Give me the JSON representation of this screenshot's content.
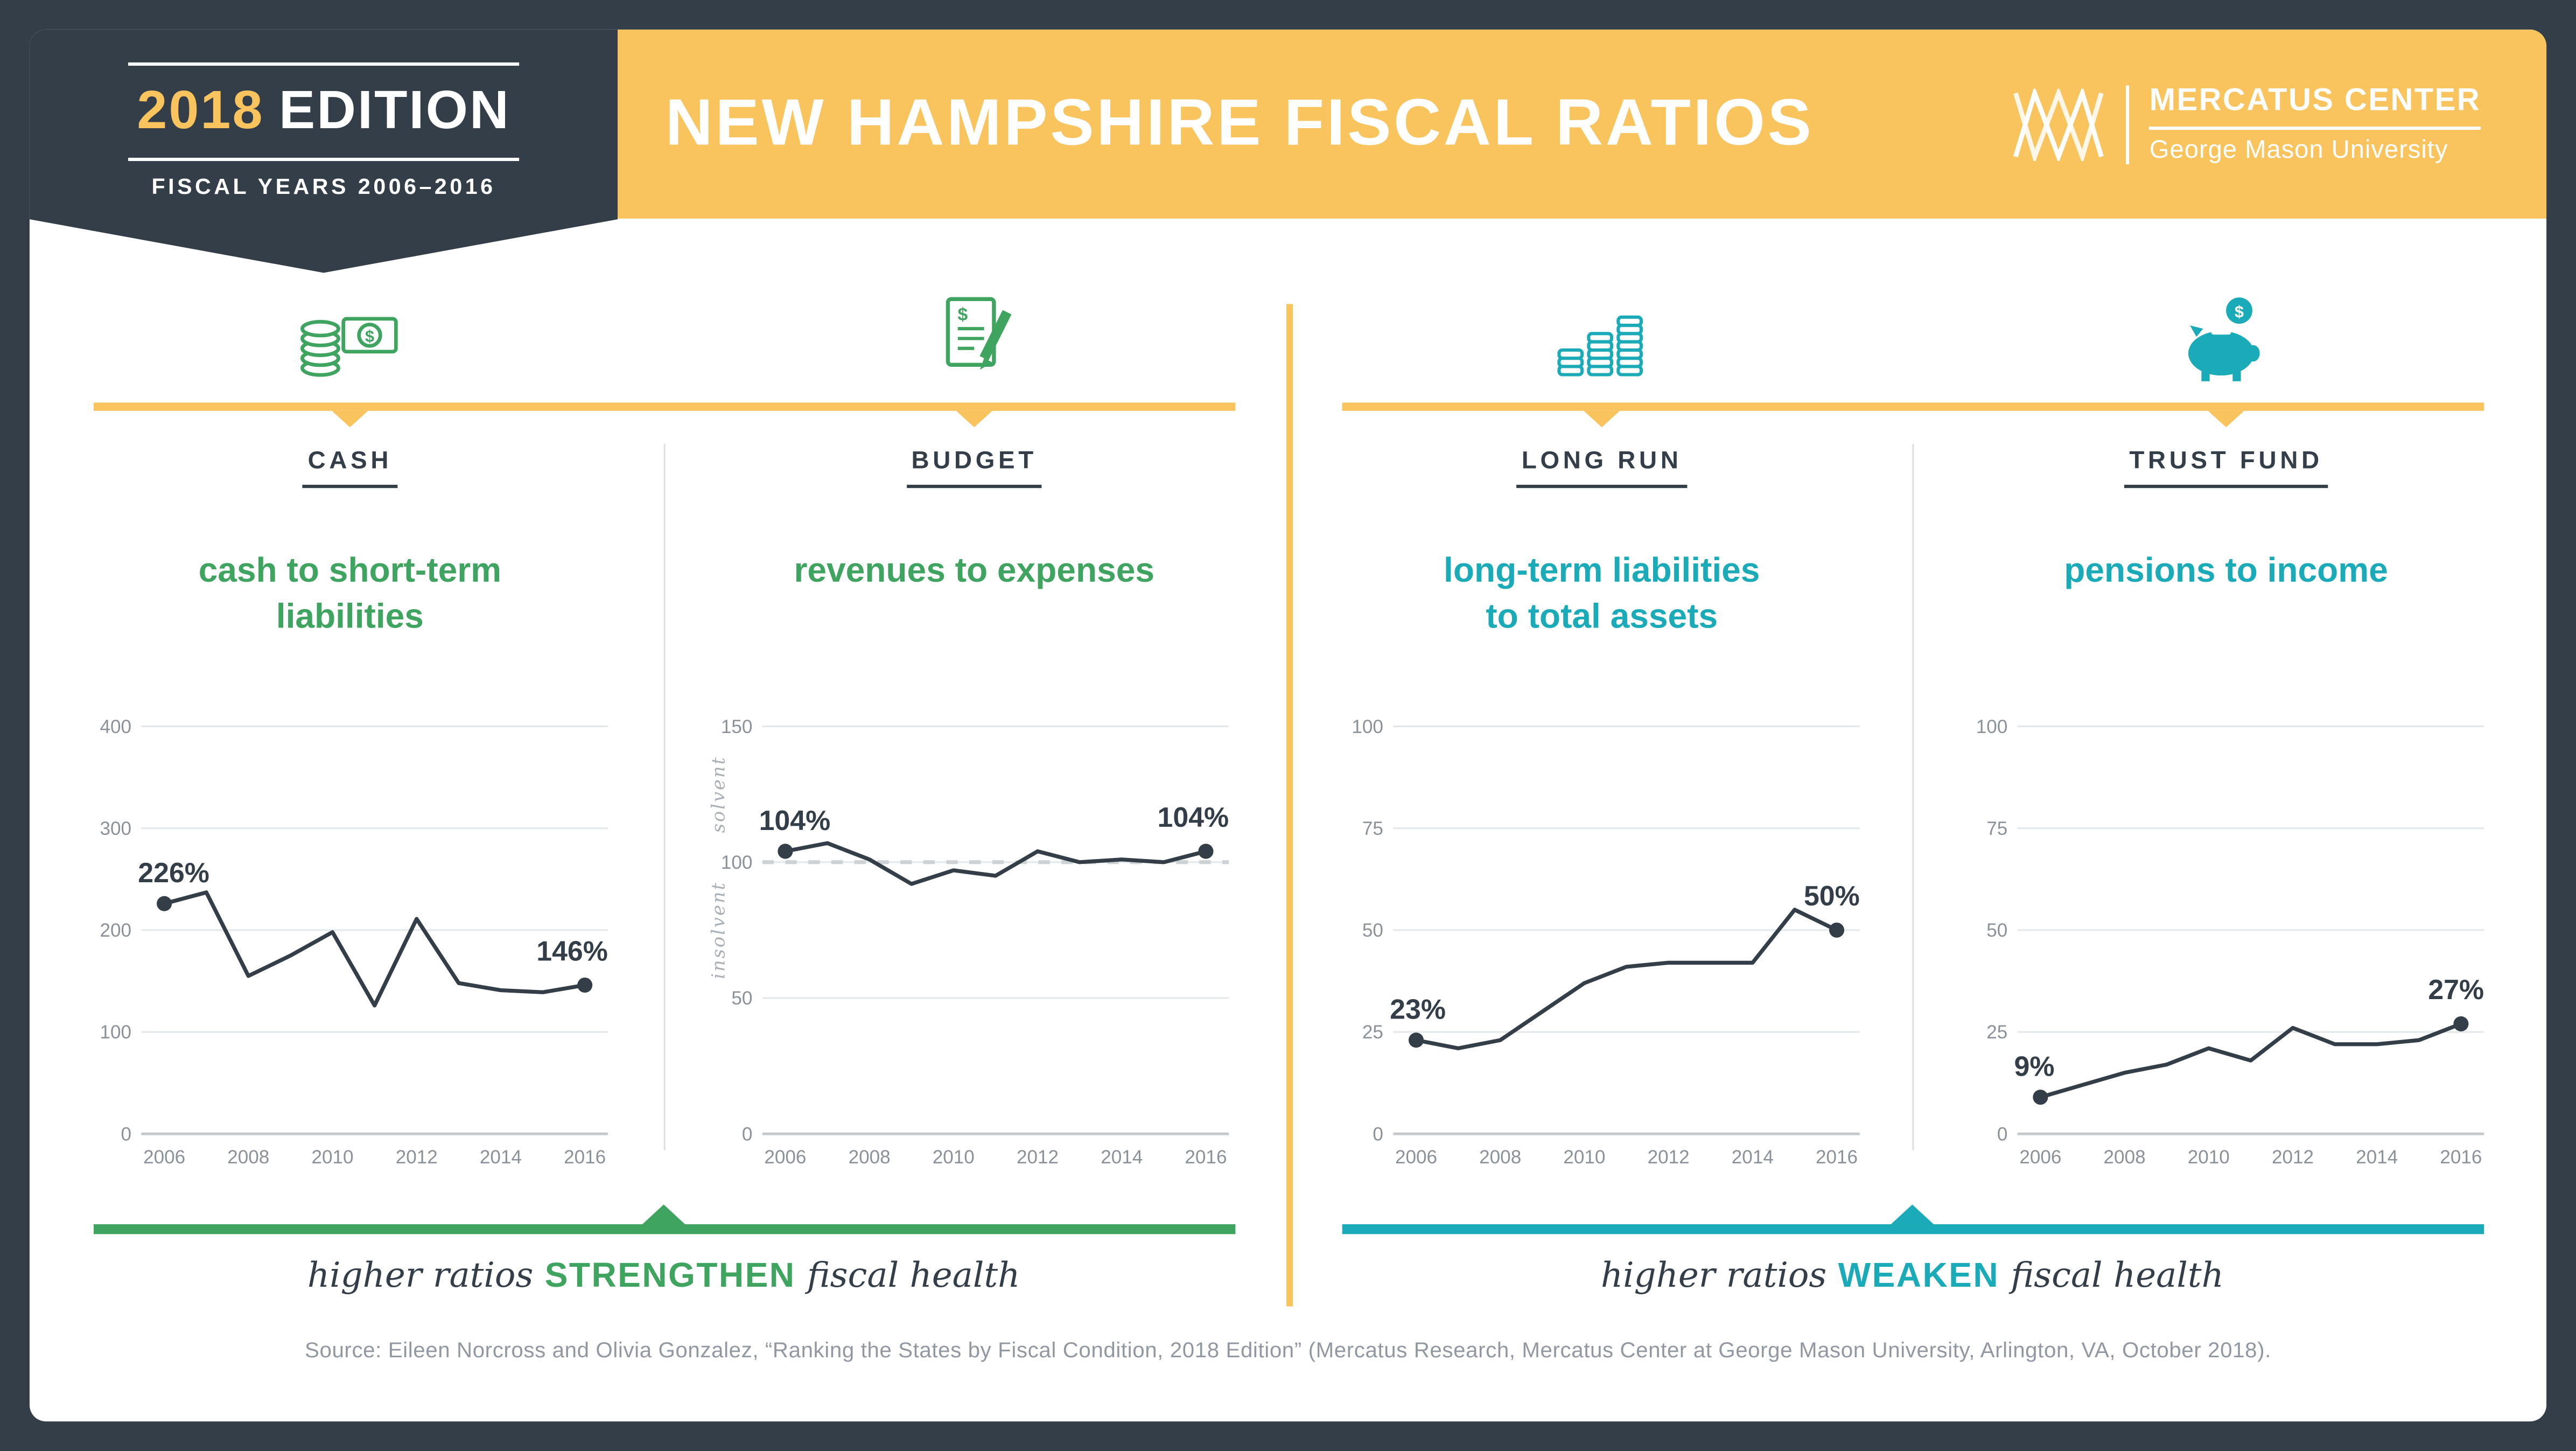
{
  "header": {
    "badge": {
      "year": "2018",
      "edition_word": "EDITION",
      "subtitle": "FISCAL YEARS 2006–2016"
    },
    "title": "NEW HAMPSHIRE FISCAL RATIOS",
    "logo": {
      "name": "MERCATUS CENTER",
      "university": "George Mason University",
      "mark_icon": "mercatus-lattice-icon"
    }
  },
  "colors": {
    "navy": "#333E48",
    "yellow": "#F9C35E",
    "green": "#3FA45F",
    "teal": "#1BABB8",
    "grid": "#E4E7EA",
    "tick_text": "#8B9198",
    "source_text": "#9298A1"
  },
  "panels": [
    {
      "category": "CASH",
      "heading": "cash to short-term\nliabilities",
      "icon": "coins-and-banknote-icon",
      "accent": "#3FA45F",
      "group": "strengthen"
    },
    {
      "category": "BUDGET",
      "heading": "revenues to expenses",
      "icon": "budget-document-icon",
      "accent": "#3FA45F",
      "group": "strengthen"
    },
    {
      "category": "LONG RUN",
      "heading": "long-term liabilities\nto total assets",
      "icon": "coin-stacks-chart-icon",
      "accent": "#1BABB8",
      "group": "weaken"
    },
    {
      "category": "TRUST FUND",
      "heading": "pensions to income",
      "icon": "piggy-bank-icon",
      "accent": "#1BABB8",
      "group": "weaken"
    }
  ],
  "chart_data": [
    {
      "id": "cash",
      "type": "line",
      "title": "cash to short-term liabilities",
      "x": [
        2006,
        2007,
        2008,
        2009,
        2010,
        2011,
        2012,
        2013,
        2014,
        2015,
        2016
      ],
      "values": [
        226,
        237,
        155,
        175,
        198,
        126,
        211,
        148,
        141,
        139,
        146
      ],
      "ylim": [
        0,
        400
      ],
      "yticks": [
        0,
        100,
        200,
        300,
        400
      ],
      "xticks": [
        2006,
        2008,
        2010,
        2012,
        2014,
        2016
      ],
      "first_point_label": "226%",
      "last_point_label": "146%",
      "line_color": "#333E48",
      "grid": true,
      "legend": "none"
    },
    {
      "id": "budget",
      "type": "line",
      "title": "revenues to expenses",
      "x": [
        2006,
        2007,
        2008,
        2009,
        2010,
        2011,
        2012,
        2013,
        2014,
        2015,
        2016
      ],
      "values": [
        104,
        107,
        101,
        92,
        97,
        95,
        104,
        100,
        101,
        100,
        104
      ],
      "ylim": [
        0,
        150
      ],
      "yticks": [
        0,
        50,
        100,
        150
      ],
      "xticks": [
        2006,
        2008,
        2010,
        2012,
        2014,
        2016
      ],
      "first_point_label": "104%",
      "last_point_label": "104%",
      "reference_line": {
        "y": 100,
        "style": "dashed"
      },
      "band_labels": {
        "above": "solvent",
        "below": "insolvent"
      },
      "line_color": "#333E48",
      "grid": true,
      "legend": "none"
    },
    {
      "id": "long-run",
      "type": "line",
      "title": "long-term liabilities to total assets",
      "x": [
        2006,
        2007,
        2008,
        2009,
        2010,
        2011,
        2012,
        2013,
        2014,
        2015,
        2016
      ],
      "values": [
        23,
        21,
        23,
        30,
        37,
        41,
        42,
        42,
        42,
        55,
        50
      ],
      "ylim": [
        0,
        100
      ],
      "yticks": [
        0,
        25,
        50,
        75,
        100
      ],
      "xticks": [
        2006,
        2008,
        2010,
        2012,
        2014,
        2016
      ],
      "first_point_label": "23%",
      "last_point_label": "50%",
      "line_color": "#333E48",
      "grid": true,
      "legend": "none"
    },
    {
      "id": "trust-fund",
      "type": "line",
      "title": "pensions to income",
      "x": [
        2006,
        2007,
        2008,
        2009,
        2010,
        2011,
        2012,
        2013,
        2014,
        2015,
        2016
      ],
      "values": [
        9,
        12,
        15,
        17,
        21,
        18,
        26,
        22,
        22,
        23,
        27
      ],
      "ylim": [
        0,
        100
      ],
      "yticks": [
        0,
        25,
        50,
        75,
        100
      ],
      "xticks": [
        2006,
        2008,
        2010,
        2012,
        2014,
        2016
      ],
      "first_point_label": "9%",
      "last_point_label": "27%",
      "line_color": "#333E48",
      "grid": true,
      "legend": "none"
    }
  ],
  "footers": {
    "left": {
      "prefix": "higher ratios",
      "emphasis": "STRENGTHEN",
      "suffix": "fiscal health"
    },
    "right": {
      "prefix": "higher ratios",
      "emphasis": "WEAKEN",
      "suffix": "fiscal health"
    }
  },
  "source": "Source: Eileen Norcross and Olivia Gonzalez, “Ranking the States by Fiscal Condition, 2018 Edition” (Mercatus Research, Mercatus Center at George Mason University, Arlington, VA, October 2018)."
}
